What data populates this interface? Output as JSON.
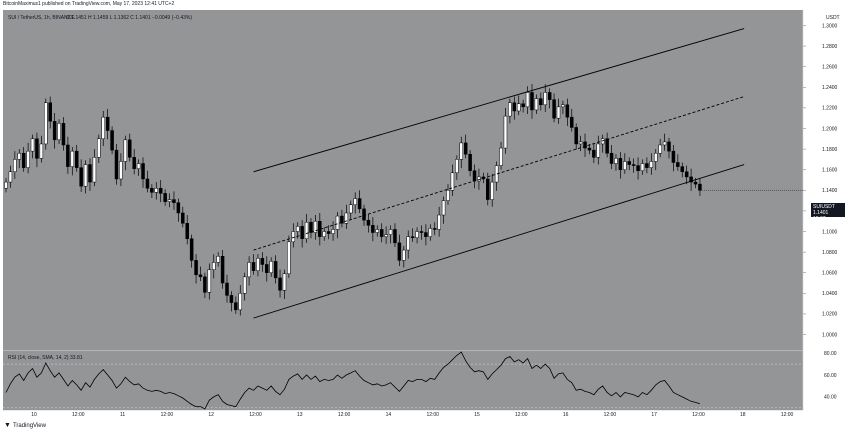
{
  "header": {
    "published": "BitcoinMaximus1 published on TradingView.com, May 17, 2023 12:41 UTC+2"
  },
  "chart_data": {
    "type": "candlestick",
    "legend": {
      "symbol": "SUI / TetherUS, 1h, BINANCE",
      "ohlc": "O 1.1451  H 1.1459  L 1.1362  C 1.1401  −0.0049 (−0.43%)"
    },
    "currency": "USDT",
    "price_axis": {
      "ticks": [
        "1.3000",
        "1.2800",
        "1.2600",
        "1.2400",
        "1.2200",
        "1.2000",
        "1.1800",
        "1.1600",
        "1.1400",
        "1.1200",
        "1.1000",
        "1.0800",
        "1.0600",
        "1.0400",
        "1.0200",
        "1.0000"
      ],
      "values": [
        1.3,
        1.28,
        1.26,
        1.24,
        1.22,
        1.2,
        1.18,
        1.16,
        1.14,
        1.12,
        1.1,
        1.08,
        1.06,
        1.04,
        1.02,
        1.0
      ],
      "range": [
        0.985,
        1.315
      ]
    },
    "current_price": {
      "label": "SUIUSDT",
      "value": "1.1401",
      "countdown": "18:37"
    },
    "time_axis": {
      "ticks": [
        "10",
        "12:00",
        "11",
        "12:00",
        "12",
        "12:00",
        "13",
        "12:00",
        "14",
        "12:00",
        "15",
        "12:00",
        "16",
        "12:00",
        "17",
        "12:00",
        "18",
        "12:00"
      ]
    },
    "closes": [
      1.148,
      1.158,
      1.17,
      1.176,
      1.162,
      1.178,
      1.19,
      1.171,
      1.185,
      1.225,
      1.207,
      1.189,
      1.205,
      1.184,
      1.163,
      1.178,
      1.162,
      1.144,
      1.165,
      1.148,
      1.172,
      1.19,
      1.211,
      1.198,
      1.179,
      1.151,
      1.168,
      1.189,
      1.172,
      1.161,
      1.166,
      1.151,
      1.142,
      1.138,
      1.142,
      1.137,
      1.129,
      1.131,
      1.128,
      1.118,
      1.108,
      1.093,
      1.072,
      1.058,
      1.056,
      1.041,
      1.063,
      1.07,
      1.076,
      1.05,
      1.038,
      1.031,
      1.024,
      1.04,
      1.056,
      1.07,
      1.062,
      1.074,
      1.068,
      1.06,
      1.071,
      1.055,
      1.043,
      1.059,
      1.09,
      1.1,
      1.105,
      1.093,
      1.109,
      1.099,
      1.11,
      1.095,
      1.1,
      1.098,
      1.102,
      1.115,
      1.108,
      1.118,
      1.126,
      1.132,
      1.122,
      1.111,
      1.106,
      1.099,
      1.102,
      1.095,
      1.097,
      1.102,
      1.089,
      1.072,
      1.082,
      1.095,
      1.094,
      1.1,
      1.099,
      1.095,
      1.103,
      1.102,
      1.116,
      1.13,
      1.14,
      1.157,
      1.17,
      1.186,
      1.175,
      1.159,
      1.149,
      1.153,
      1.151,
      1.131,
      1.148,
      1.164,
      1.181,
      1.212,
      1.225,
      1.217,
      1.224,
      1.221,
      1.235,
      1.218,
      1.229,
      1.223,
      1.235,
      1.228,
      1.21,
      1.221,
      1.223,
      1.211,
      1.201,
      1.185,
      1.187,
      1.181,
      1.179,
      1.172,
      1.185,
      1.19,
      1.176,
      1.166,
      1.171,
      1.16,
      1.168,
      1.165,
      1.164,
      1.159,
      1.166,
      1.162,
      1.168,
      1.176,
      1.184,
      1.187,
      1.178,
      1.167,
      1.163,
      1.158,
      1.153,
      1.148,
      1.146,
      1.14
    ],
    "channel": {
      "upper": {
        "x": [
          56,
          167
        ],
        "y": [
          1.158,
          1.297
        ]
      },
      "middle": {
        "x": [
          56,
          167
        ],
        "y": [
          1.082,
          1.231
        ],
        "style": "dashed"
      },
      "lower": {
        "x": [
          56,
          167
        ],
        "y": [
          1.016,
          1.165
        ]
      }
    },
    "rsi": {
      "legend": "RSI (14, close, SMA, 14, 2)",
      "value_label": "33.81",
      "ticks": [
        "80.00",
        "60.00",
        "40.00"
      ],
      "tick_values": [
        80,
        60,
        40
      ],
      "range": [
        28,
        82
      ],
      "levels": [
        70,
        30
      ],
      "values": [
        44,
        52,
        58,
        61,
        55,
        62,
        66,
        58,
        62,
        71,
        64,
        58,
        62,
        56,
        50,
        55,
        51,
        46,
        53,
        49,
        56,
        61,
        65,
        60,
        55,
        48,
        52,
        58,
        54,
        51,
        52,
        48,
        46,
        45,
        46,
        45,
        43,
        44,
        43,
        41,
        39,
        36,
        33,
        31,
        31,
        29,
        37,
        40,
        42,
        36,
        33,
        32,
        31,
        38,
        44,
        48,
        46,
        50,
        48,
        46,
        50,
        45,
        42,
        47,
        56,
        59,
        61,
        56,
        60,
        56,
        59,
        54,
        56,
        55,
        56,
        60,
        57,
        60,
        62,
        64,
        59,
        55,
        53,
        51,
        52,
        50,
        51,
        53,
        49,
        45,
        50,
        55,
        54,
        56,
        56,
        54,
        57,
        56,
        62,
        67,
        70,
        74,
        78,
        81,
        73,
        67,
        63,
        64,
        63,
        56,
        61,
        65,
        69,
        75,
        77,
        72,
        74,
        71,
        75,
        66,
        69,
        66,
        70,
        66,
        57,
        61,
        62,
        56,
        53,
        46,
        47,
        45,
        44,
        42,
        47,
        50,
        44,
        41,
        44,
        40,
        44,
        43,
        42,
        40,
        44,
        42,
        46,
        51,
        54,
        55,
        50,
        44,
        42,
        40,
        38,
        36,
        35,
        33.8
      ]
    },
    "grid": false,
    "legend_position": "top-left"
  }
}
